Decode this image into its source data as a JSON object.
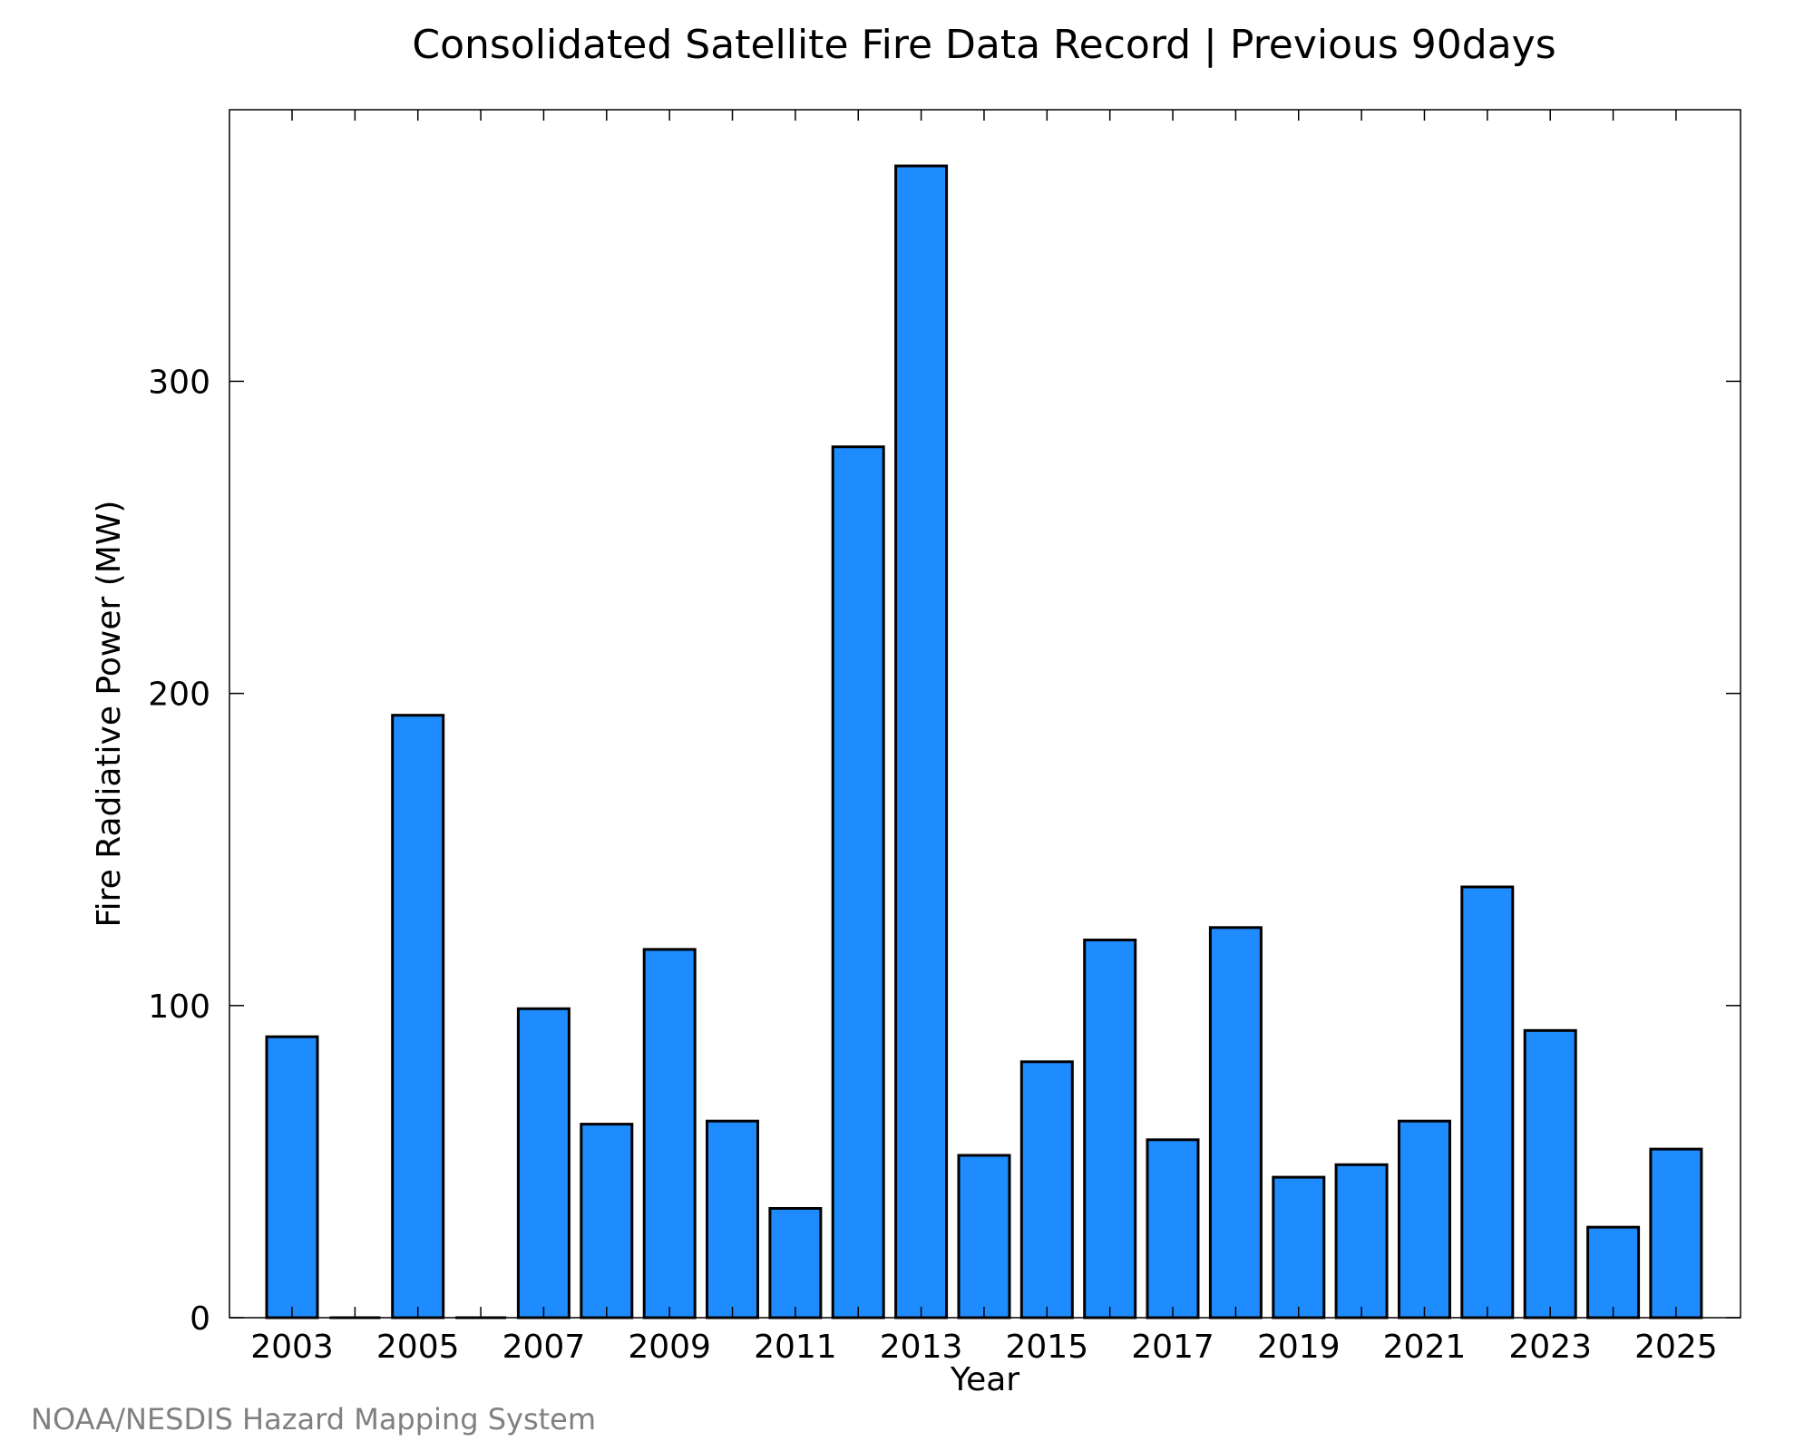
{
  "chart_data": {
    "type": "bar",
    "title": "Consolidated Satellite Fire Data Record | Previous 90days",
    "xlabel": "Year",
    "ylabel": "Fire Radiative Power (MW)",
    "categories": [
      "2003",
      "2004",
      "2005",
      "2006",
      "2007",
      "2008",
      "2009",
      "2010",
      "2011",
      "2012",
      "2013",
      "2014",
      "2015",
      "2016",
      "2017",
      "2018",
      "2019",
      "2020",
      "2021",
      "2022",
      "2023",
      "2024",
      "2025"
    ],
    "values": [
      90,
      0,
      193,
      0,
      99,
      62,
      118,
      63,
      35,
      279,
      369,
      52,
      82,
      121,
      57,
      125,
      45,
      49,
      63,
      138,
      92,
      29,
      54
    ],
    "x_tick_labels": [
      "2003",
      "2005",
      "2007",
      "2009",
      "2011",
      "2013",
      "2015",
      "2017",
      "2019",
      "2021",
      "2023",
      "2025"
    ],
    "y_ticks": [
      "0",
      "100",
      "200",
      "300"
    ],
    "ylim": [
      0,
      387
    ],
    "bar_color": "#1e8cff",
    "grid": false,
    "legend": "none"
  },
  "credit": "NOAA/NESDIS Hazard Mapping System"
}
